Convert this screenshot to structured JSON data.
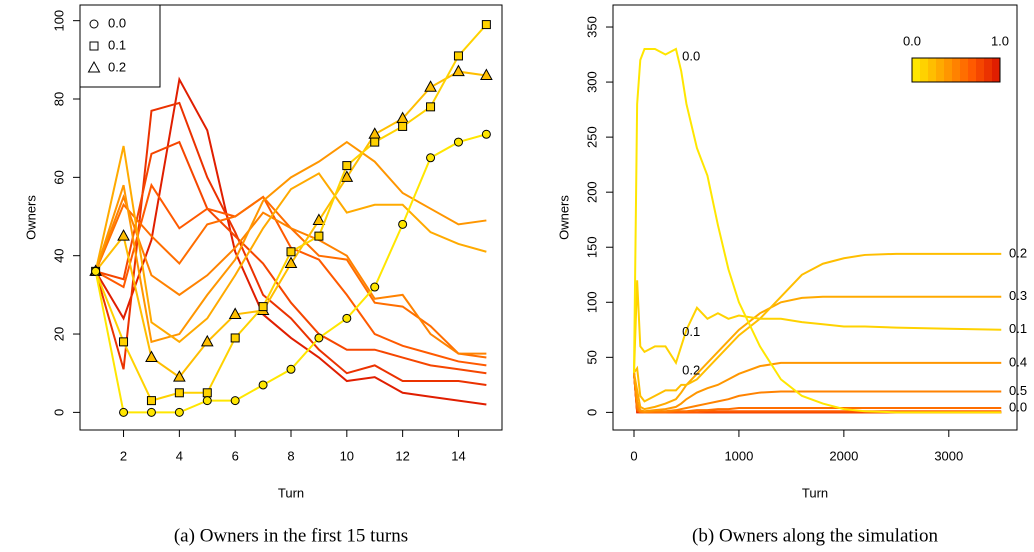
{
  "chart_data": [
    {
      "type": "line",
      "caption": "(a) Owners in the first 15 turns",
      "xlabel": "Turn",
      "ylabel": "Owners",
      "x": [
        1,
        2,
        3,
        4,
        5,
        6,
        7,
        8,
        9,
        10,
        11,
        12,
        13,
        14,
        15
      ],
      "xlim": [
        0.44,
        15.56
      ],
      "xticks": [
        2,
        4,
        6,
        8,
        10,
        12,
        14
      ],
      "ylim": [
        -4.5,
        104
      ],
      "yticks": [
        0,
        20,
        40,
        60,
        80,
        100
      ],
      "legend": "top-left",
      "series": [
        {
          "name": "0.0",
          "marker": "circle",
          "color": "#ffe600",
          "values": [
            36,
            0,
            0,
            0,
            3,
            3,
            7,
            11,
            19,
            24,
            32,
            48,
            65,
            69,
            71
          ]
        },
        {
          "name": "0.1",
          "marker": "square",
          "color": "#ffd200",
          "values": [
            36,
            18,
            3,
            5,
            5,
            19,
            27,
            41,
            45,
            63,
            69,
            73,
            78,
            91,
            99
          ]
        },
        {
          "name": "0.2",
          "marker": "triangle",
          "color": "#ffbe00",
          "values": [
            36,
            45,
            14,
            9,
            18,
            25,
            26,
            38,
            49,
            60,
            71,
            75,
            83,
            87,
            86
          ]
        },
        {
          "color": "#ffaa00",
          "values": [
            36,
            68,
            23,
            18,
            24,
            35,
            47,
            57,
            61,
            51,
            53,
            53,
            46,
            43,
            41
          ]
        },
        {
          "color": "#ff9600",
          "values": [
            36,
            58,
            18,
            20,
            30,
            39,
            54,
            60,
            64,
            69,
            64,
            56,
            52,
            48,
            49
          ]
        },
        {
          "color": "#ff8200",
          "values": [
            36,
            55,
            35,
            30,
            35,
            42,
            51,
            47,
            44,
            40,
            29,
            30,
            20,
            15,
            15
          ]
        },
        {
          "color": "#ff6e00",
          "values": [
            36,
            53,
            45,
            38,
            48,
            50,
            55,
            47,
            40,
            39,
            28,
            27,
            22,
            15,
            14
          ]
        },
        {
          "color": "#ff5a00",
          "values": [
            36,
            32,
            58,
            47,
            52,
            50,
            55,
            42,
            39,
            30,
            20,
            17,
            15,
            13,
            12
          ]
        },
        {
          "color": "#f54600",
          "values": [
            36,
            34,
            66,
            69,
            52,
            45,
            38,
            28,
            20,
            16,
            16,
            14,
            12,
            11,
            10
          ]
        },
        {
          "color": "#eb3200",
          "values": [
            36,
            11,
            77,
            79,
            60,
            46,
            30,
            24,
            16,
            10,
            12,
            8,
            8,
            8,
            7
          ]
        },
        {
          "color": "#e01e00",
          "values": [
            36,
            24,
            44,
            85,
            72,
            41,
            25,
            19,
            14,
            8,
            9,
            5,
            4,
            3,
            2
          ]
        }
      ]
    },
    {
      "type": "line",
      "caption": "(b) Owners along the simulation",
      "xlabel": "Turn",
      "ylabel": "Owners",
      "x": [
        0,
        30,
        60,
        100,
        200,
        300,
        400,
        450,
        500,
        600,
        700,
        800,
        900,
        1000,
        1200,
        1400,
        1600,
        1800,
        2000,
        2200,
        2500,
        3000,
        3500
      ],
      "xlim": [
        -200,
        3650
      ],
      "xticks": [
        0,
        1000,
        2000,
        3000
      ],
      "ylim": [
        -16,
        370
      ],
      "yticks": [
        0,
        50,
        100,
        150,
        200,
        250,
        300,
        350
      ],
      "colorbar": {
        "labels": [
          "0.0",
          "1.0"
        ],
        "colors": [
          "#ffe600",
          "#ffd200",
          "#ffbe00",
          "#ffaa00",
          "#ff9600",
          "#ff8200",
          "#ff6e00",
          "#ff5a00",
          "#f54600",
          "#eb3200",
          "#e01e00"
        ]
      },
      "series": [
        {
          "name": "0.0",
          "color": "#ffe600",
          "values": [
            36,
            280,
            320,
            330,
            330,
            325,
            330,
            310,
            280,
            240,
            215,
            170,
            130,
            100,
            60,
            30,
            15,
            8,
            3,
            1,
            0,
            0,
            0
          ]
        },
        {
          "name": "0.1",
          "end_label": "0.1",
          "color": "#ffd200",
          "values": [
            36,
            120,
            60,
            55,
            60,
            60,
            45,
            60,
            75,
            95,
            85,
            90,
            85,
            88,
            85,
            85,
            82,
            80,
            78,
            78,
            77,
            76,
            75
          ]
        },
        {
          "name": "0.2",
          "end_label": "0.2",
          "color": "#ffbe00",
          "values": [
            36,
            40,
            15,
            10,
            15,
            20,
            20,
            25,
            25,
            30,
            40,
            50,
            60,
            70,
            85,
            105,
            125,
            135,
            140,
            143,
            144,
            144,
            144
          ]
        },
        {
          "end_label": "0.3",
          "color": "#ffaa00",
          "values": [
            36,
            20,
            5,
            3,
            5,
            8,
            12,
            18,
            25,
            35,
            45,
            55,
            65,
            75,
            90,
            100,
            104,
            105,
            105,
            105,
            105,
            105,
            105
          ]
        },
        {
          "end_label": "0.4",
          "color": "#ff9600",
          "values": [
            36,
            10,
            2,
            1,
            2,
            3,
            5,
            8,
            12,
            18,
            22,
            25,
            30,
            35,
            42,
            45,
            45,
            45,
            45,
            45,
            45,
            45,
            45
          ]
        },
        {
          "end_label": "0.5",
          "color": "#ff8200",
          "values": [
            36,
            5,
            1,
            0,
            1,
            1,
            2,
            3,
            4,
            6,
            8,
            10,
            12,
            15,
            18,
            19,
            19,
            19,
            19,
            19,
            19,
            19,
            19
          ]
        },
        {
          "end_label": "0.0",
          "color": "#ff6e00",
          "values": [
            36,
            3,
            0,
            0,
            0,
            0,
            1,
            1,
            1,
            2,
            2,
            3,
            3,
            4,
            4,
            4,
            4,
            4,
            4,
            4,
            4,
            4,
            4
          ]
        },
        {
          "color": "#ff5a00",
          "values": [
            36,
            2,
            0,
            0,
            0,
            0,
            0,
            0,
            0,
            0,
            1,
            1,
            1,
            1,
            1,
            1,
            1,
            1,
            1,
            1,
            1,
            1,
            1
          ]
        },
        {
          "color": "#f54600",
          "values": [
            36,
            1,
            0,
            0,
            0,
            0,
            0,
            0,
            0,
            0,
            0,
            0,
            0,
            0,
            0,
            0,
            0,
            0,
            0,
            0,
            0,
            0,
            0
          ]
        },
        {
          "color": "#eb3200",
          "values": [
            36,
            1,
            0,
            0,
            0,
            0,
            0,
            0,
            0,
            0,
            0,
            0,
            0,
            0,
            0,
            0,
            0,
            0,
            0,
            0,
            0,
            0,
            0
          ]
        },
        {
          "color": "#e01e00",
          "values": [
            36,
            0,
            0,
            0,
            0,
            0,
            0,
            0,
            0,
            0,
            0,
            0,
            0,
            0,
            0,
            0,
            0,
            0,
            0,
            0,
            0,
            0,
            0
          ]
        }
      ]
    }
  ]
}
